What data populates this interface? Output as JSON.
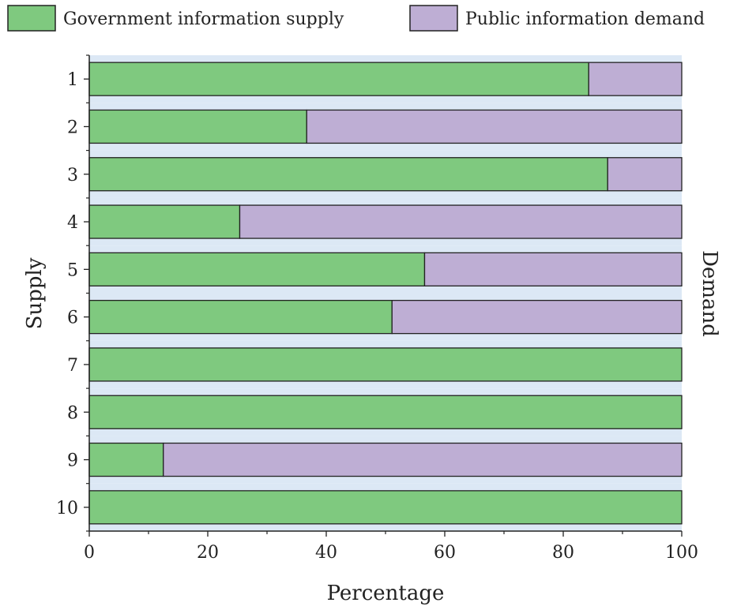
{
  "chart_data": {
    "type": "bar",
    "orientation": "horizontal",
    "stacked": true,
    "categories": [
      "1",
      "2",
      "3",
      "4",
      "5",
      "6",
      "7",
      "8",
      "9",
      "10"
    ],
    "series": [
      {
        "name": "Government information supply",
        "color": "#7fc97f",
        "values": [
          84.3,
          36.7,
          87.5,
          25.4,
          56.6,
          51.1,
          100,
          100,
          12.5,
          100
        ]
      },
      {
        "name": "Public information demand",
        "color": "#beaed4",
        "values": [
          15.7,
          63.3,
          12.5,
          74.6,
          43.4,
          48.9,
          0,
          0,
          87.5,
          0
        ]
      }
    ],
    "xlabel": "Percentage",
    "ylabel": "Supply",
    "ylabel_right": "Demand",
    "xlim": [
      0,
      100
    ],
    "xticks": [
      "0",
      "20",
      "40",
      "60",
      "80",
      "100"
    ],
    "legend_position": "top",
    "band_color": "#dce8f5"
  }
}
